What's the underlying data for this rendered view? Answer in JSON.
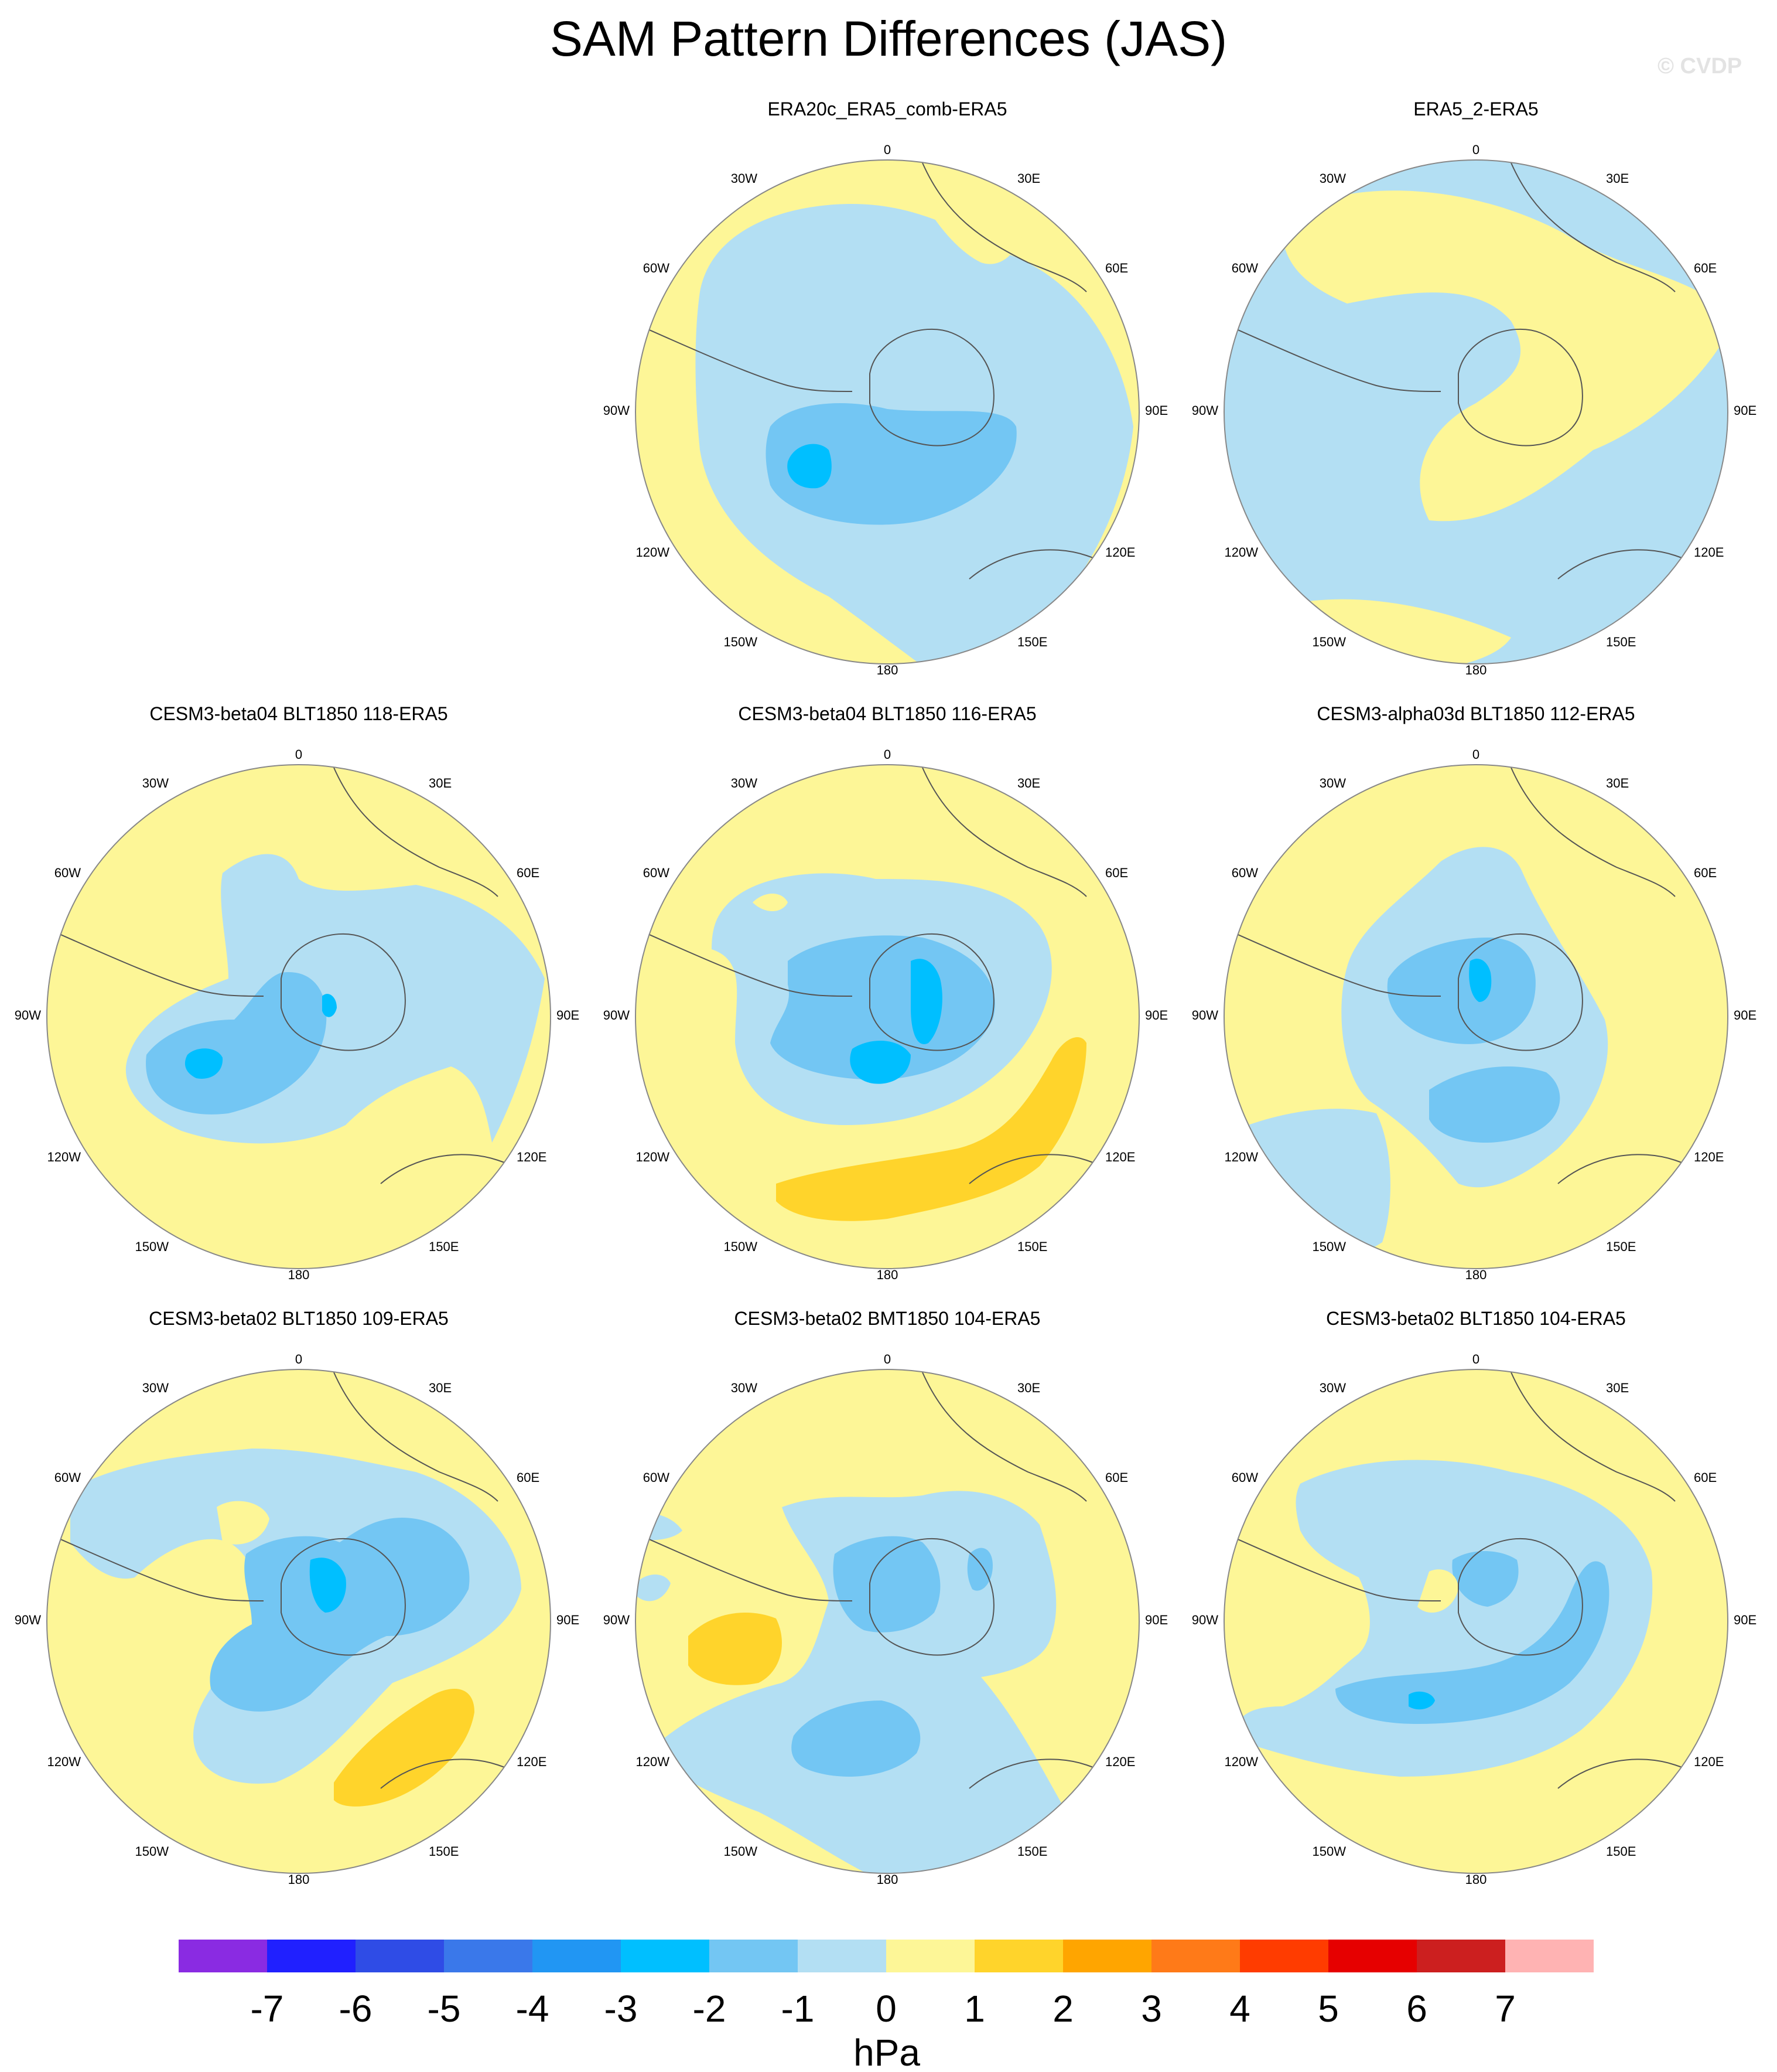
{
  "title": "SAM Pattern Differences (JAS)",
  "watermark": "© CVDP",
  "map_labels": {
    "lon_0": "0",
    "lon_30e": "30E",
    "lon_60e": "60E",
    "lon_90e": "90E",
    "lon_120e": "120E",
    "lon_150e": "150E",
    "lon_180": "180",
    "lon_150w": "150W",
    "lon_120w": "120W",
    "lon_90w": "90W",
    "lon_60w": "60W",
    "lon_30w": "30W"
  },
  "panels": [
    {
      "title": "ERA20c_ERA5_comb-ERA5"
    },
    {
      "title": "ERA5_2-ERA5"
    },
    {
      "title": "CESM3-beta04 BLT1850 118-ERA5"
    },
    {
      "title": "CESM3-beta04 BLT1850 116-ERA5"
    },
    {
      "title": "CESM3-alpha03d BLT1850 112-ERA5"
    },
    {
      "title": "CESM3-beta02 BLT1850 109-ERA5"
    },
    {
      "title": "CESM3-beta02 BMT1850 104-ERA5"
    },
    {
      "title": "CESM3-beta02 BLT1850 104-ERA5"
    }
  ],
  "colorbar": {
    "unit": "hPa",
    "tick_labels": [
      "-7",
      "-6",
      "-5",
      "-4",
      "-3",
      "-2",
      "-1",
      "0",
      "1",
      "2",
      "3",
      "4",
      "5",
      "6",
      "7"
    ],
    "colors": [
      "#8a2be2",
      "#2020ff",
      "#2f4ce6",
      "#3a78ea",
      "#2196f3",
      "#00bfff",
      "#73c6f3",
      "#b3dff3",
      "#fdf697",
      "#ffd42b",
      "#ffa500",
      "#ff7a18",
      "#ff3c00",
      "#e60000",
      "#cc1f1f",
      "#ffb3b3"
    ]
  },
  "colors": {
    "neg_1_0": "#b3dff3",
    "neg_2_1": "#73c6f3",
    "neg_3_2": "#00bfff",
    "pos_0_1": "#fdf697",
    "pos_1_2": "#ffd42b",
    "coastline": "#555555"
  }
}
